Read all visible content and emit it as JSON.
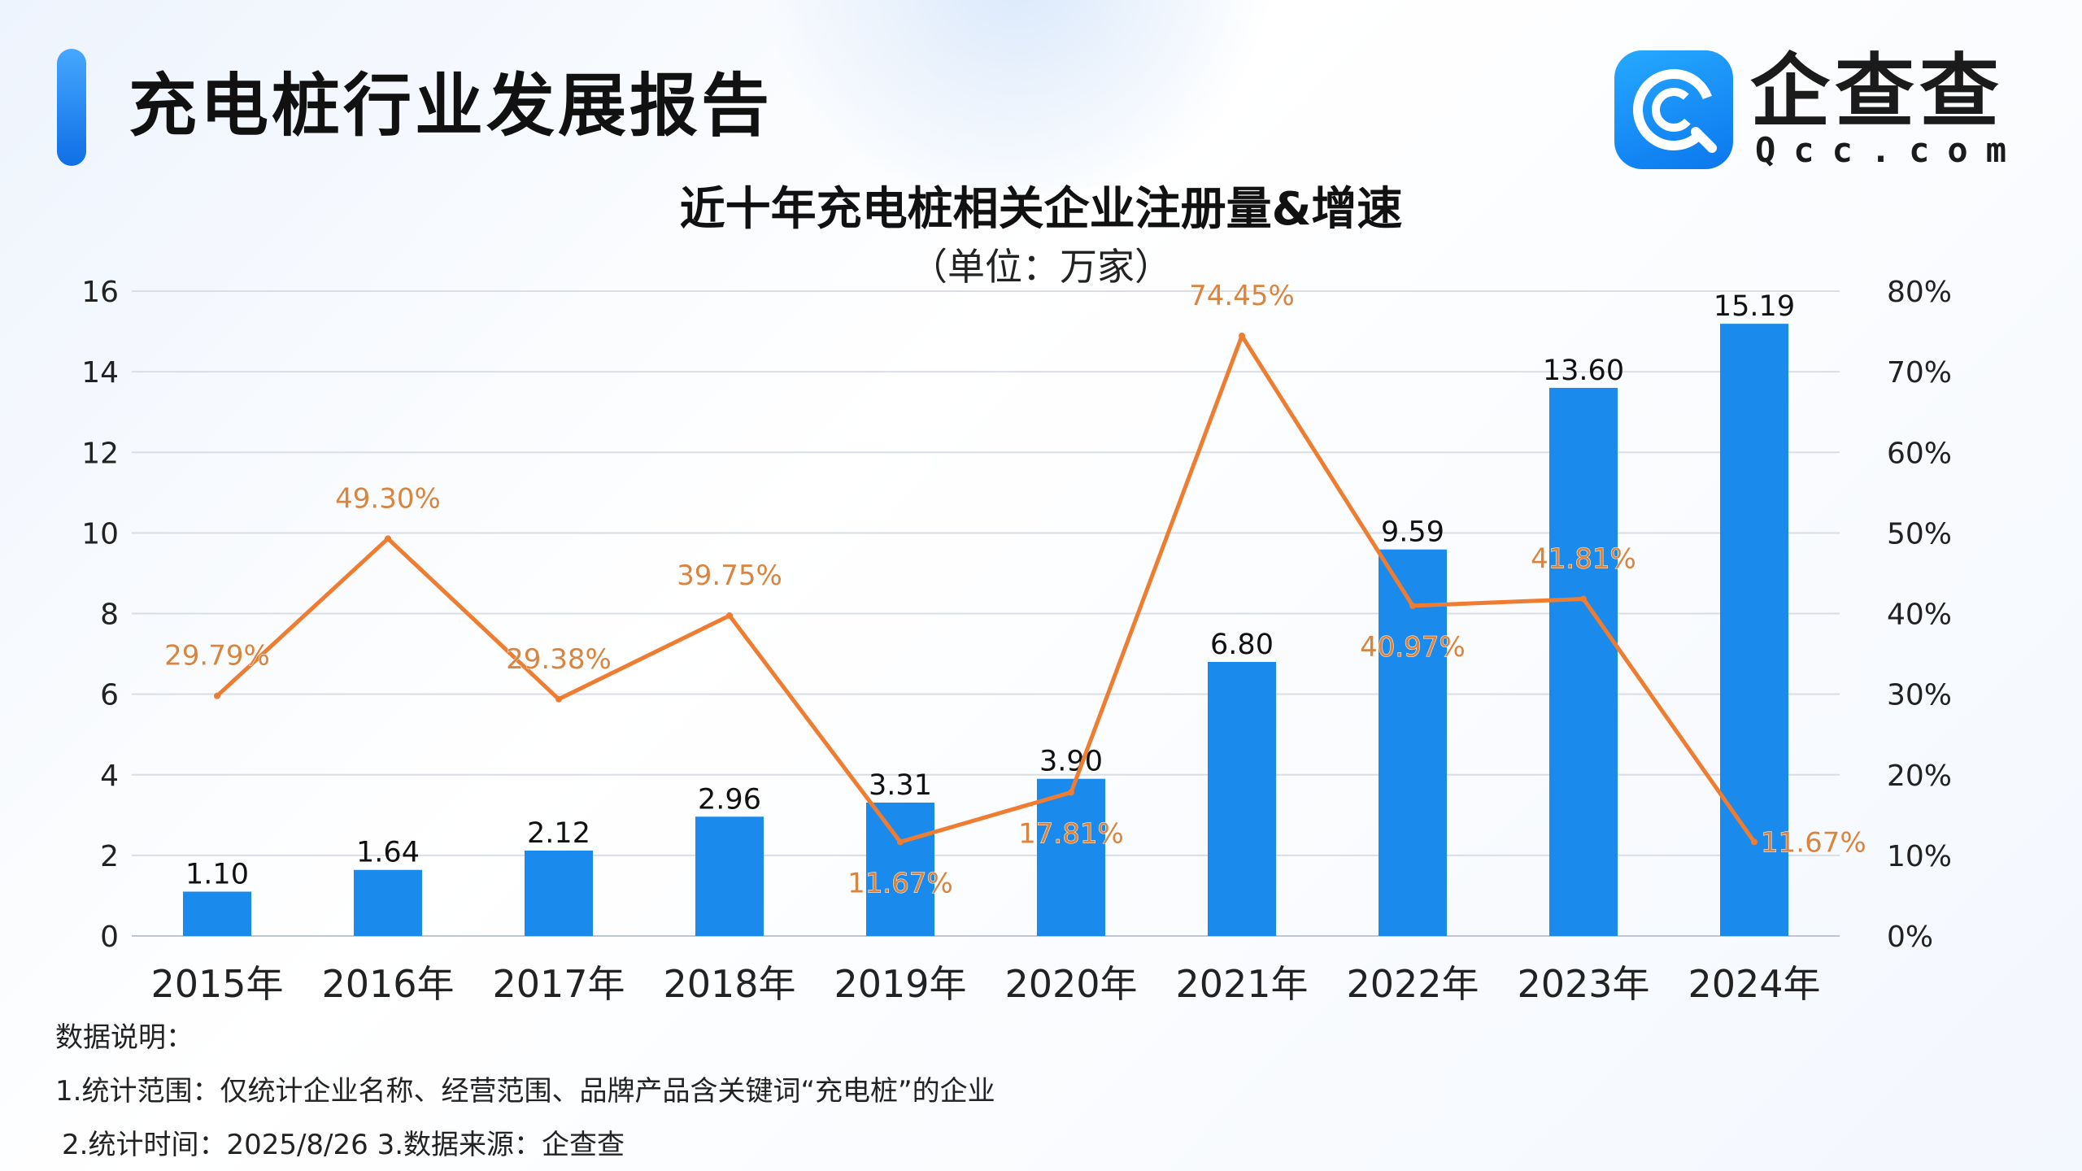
{
  "header": {
    "report_title": "充电桩行业发展报告",
    "logo_text": "企查查",
    "logo_sub": "Qcc.com"
  },
  "colors": {
    "bar": "#1a8aec",
    "line": "#ee7d31",
    "accent": "#1577f0"
  },
  "chart_data": {
    "type": "bar",
    "title": "近十年充电桩相关企业注册量&增速",
    "subtitle": "（单位：万家）",
    "categories": [
      "2015年",
      "2016年",
      "2017年",
      "2018年",
      "2019年",
      "2020年",
      "2021年",
      "2022年",
      "2023年",
      "2024年"
    ],
    "series": [
      {
        "type": "bar",
        "axis": "left",
        "values": [
          1.1,
          1.64,
          2.12,
          2.96,
          3.31,
          3.9,
          6.8,
          9.59,
          13.6,
          15.19
        ],
        "labels": [
          "1.10",
          "1.64",
          "2.12",
          "2.96",
          "3.31",
          "3.90",
          "6.80",
          "9.59",
          "13.60",
          "15.19"
        ]
      },
      {
        "type": "line",
        "axis": "right",
        "values": [
          29.79,
          49.3,
          29.38,
          39.75,
          11.67,
          17.81,
          74.45,
          40.97,
          41.81,
          11.67
        ],
        "labels": [
          "29.79%",
          "49.30%",
          "29.38%",
          "39.75%",
          "11.67%",
          "17.81%",
          "74.45%",
          "40.97%",
          "41.81%",
          "11.67%"
        ]
      }
    ],
    "ylim": [
      0,
      16
    ],
    "yticks": [
      "0",
      "2",
      "4",
      "6",
      "8",
      "10",
      "12",
      "14",
      "16"
    ],
    "y2lim": [
      0,
      80
    ],
    "y2ticks": [
      "0%",
      "10%",
      "20%",
      "30%",
      "40%",
      "50%",
      "60%",
      "70%",
      "80%"
    ],
    "grid": true,
    "legend": "none"
  },
  "notes": {
    "heading": "数据说明：",
    "line1": "1.统计范围：仅统计企业名称、经营范围、品牌产品含关键词“充电桩”的企业",
    "line2": "2.统计时间：2025/8/26 3.数据来源：企查查"
  }
}
